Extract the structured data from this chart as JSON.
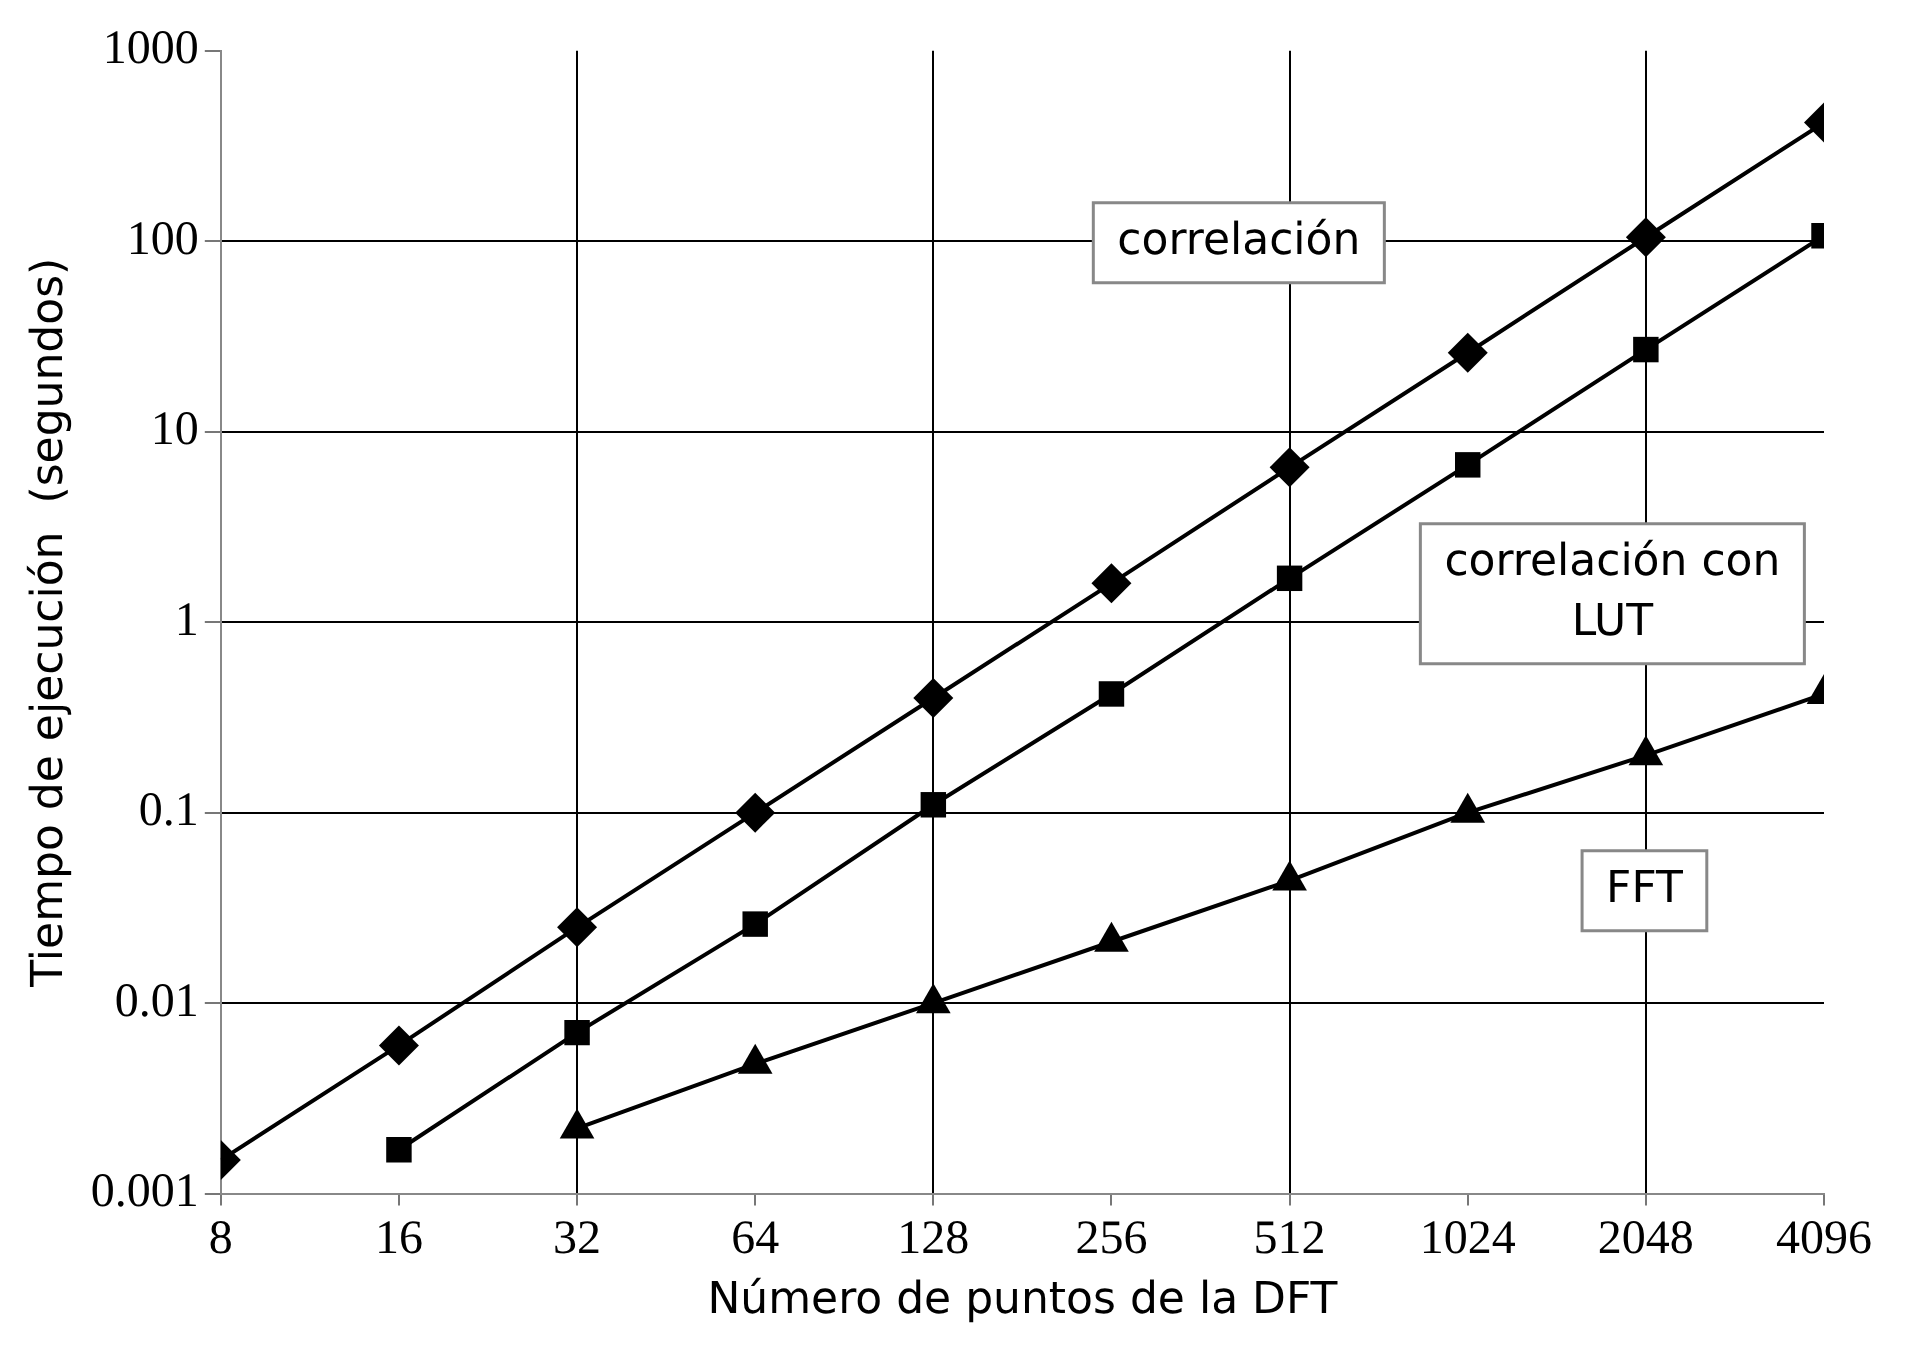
{
  "chart_data": {
    "type": "line",
    "xlabel": "Número de puntos de la DFT",
    "ylabel": "Tiempo de ejecución  (segundos)",
    "log": "xy",
    "grid": true,
    "legend": false,
    "line_style": "solid",
    "xlim": [
      8,
      4096
    ],
    "xticks": [
      8,
      16,
      32,
      64,
      128,
      256,
      512,
      1024,
      2048,
      4096
    ],
    "ylim": [
      0.001,
      1000
    ],
    "yticks": [
      0.001,
      0.01,
      0.1,
      1,
      10,
      100,
      1000
    ],
    "x": [
      8,
      16,
      32,
      64,
      128,
      256,
      512,
      1024,
      2048,
      4096
    ],
    "series": [
      {
        "name": "correlación",
        "color": "#000000",
        "marker": "diamond",
        "values": [
          0.0015,
          0.006,
          0.025,
          0.1,
          0.4,
          1.6,
          6.5,
          26,
          105,
          420
        ]
      },
      {
        "name": "correlación con LUT",
        "color": "#000000",
        "marker": "square",
        "values": [
          null,
          0.0017,
          0.007,
          0.026,
          0.11,
          0.42,
          1.7,
          6.7,
          27,
          107
        ]
      },
      {
        "name": "FFT",
        "color": "#000000",
        "marker": "triangle",
        "values": [
          null,
          null,
          0.0022,
          0.0048,
          0.01,
          0.021,
          0.044,
          0.1,
          0.2,
          0.42
        ]
      }
    ]
  }
}
